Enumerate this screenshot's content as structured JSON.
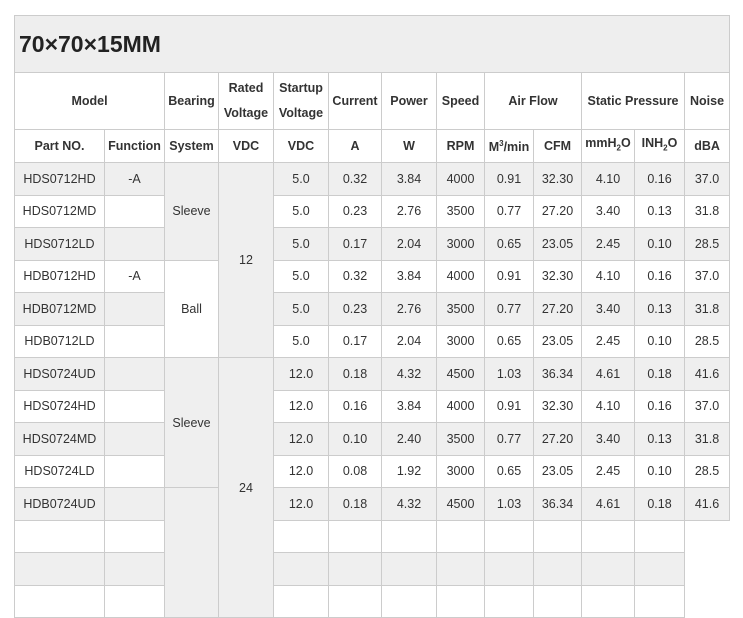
{
  "title": "70×70×15MM",
  "header_row1": {
    "model": "Model",
    "bearing": "Bearing",
    "rated_voltage": [
      "Rated",
      "Voltage"
    ],
    "startup_voltage": [
      "Startup",
      "Voltage"
    ],
    "current": "Current",
    "power": "Power",
    "speed": "Speed",
    "air_flow": "Air Flow",
    "static_pressure": "Static Pressure",
    "noise": "Noise"
  },
  "header_row2": {
    "part_no": "Part NO.",
    "function": "Function",
    "system": "System",
    "rated_unit": "VDC",
    "startup_unit": "VDC",
    "current_unit": "A",
    "power_unit": "W",
    "speed_unit": "RPM",
    "airflow_m3": [
      "M",
      "3",
      "/min"
    ],
    "airflow_cfm": "CFM",
    "mmh2o": [
      "mmH",
      "2",
      "O"
    ],
    "inh2o": [
      "INH",
      "2",
      "O"
    ],
    "noise_unit": "dBA"
  },
  "groups": [
    {
      "voltage": "12",
      "bearings": [
        {
          "system": "Sleeve",
          "rows": [
            [
              "HDS0712HD",
              "-A",
              "5.0",
              "0.32",
              "3.84",
              "4000",
              "0.91",
              "32.30",
              "4.10",
              "0.16",
              "37.0"
            ],
            [
              "HDS0712MD",
              "",
              "5.0",
              "0.23",
              "2.76",
              "3500",
              "0.77",
              "27.20",
              "3.40",
              "0.13",
              "31.8"
            ],
            [
              "HDS0712LD",
              "",
              "5.0",
              "0.17",
              "2.04",
              "3000",
              "0.65",
              "23.05",
              "2.45",
              "0.10",
              "28.5"
            ]
          ]
        },
        {
          "system": "Ball",
          "rows": [
            [
              "HDB0712HD",
              "-A",
              "5.0",
              "0.32",
              "3.84",
              "4000",
              "0.91",
              "32.30",
              "4.10",
              "0.16",
              "37.0"
            ],
            [
              "HDB0712MD",
              "",
              "5.0",
              "0.23",
              "2.76",
              "3500",
              "0.77",
              "27.20",
              "3.40",
              "0.13",
              "31.8"
            ],
            [
              "HDB0712LD",
              "",
              "5.0",
              "0.17",
              "2.04",
              "3000",
              "0.65",
              "23.05",
              "2.45",
              "0.10",
              "28.5"
            ]
          ]
        }
      ]
    },
    {
      "voltage": "24",
      "bearings": [
        {
          "system": "Sleeve",
          "rows": [
            [
              "HDS0724UD",
              "",
              "12.0",
              "0.18",
              "4.32",
              "4500",
              "1.03",
              "36.34",
              "4.61",
              "0.18",
              "41.6"
            ],
            [
              "HDS0724HD",
              "",
              "12.0",
              "0.16",
              "3.84",
              "4000",
              "0.91",
              "32.30",
              "4.10",
              "0.16",
              "37.0"
            ],
            [
              "HDS0724MD",
              "",
              "12.0",
              "0.10",
              "2.40",
              "3500",
              "0.77",
              "27.20",
              "3.40",
              "0.13",
              "31.8"
            ],
            [
              "HDS0724LD",
              "",
              "12.0",
              "0.08",
              "1.92",
              "3000",
              "0.65",
              "23.05",
              "2.45",
              "0.10",
              "28.5"
            ]
          ]
        },
        {
          "system": "",
          "rows": [
            [
              "HDB0724UD",
              "",
              "12.0",
              "0.18",
              "4.32",
              "4500",
              "1.03",
              "36.34",
              "4.61",
              "0.18",
              "41.6"
            ]
          ]
        }
      ]
    }
  ]
}
